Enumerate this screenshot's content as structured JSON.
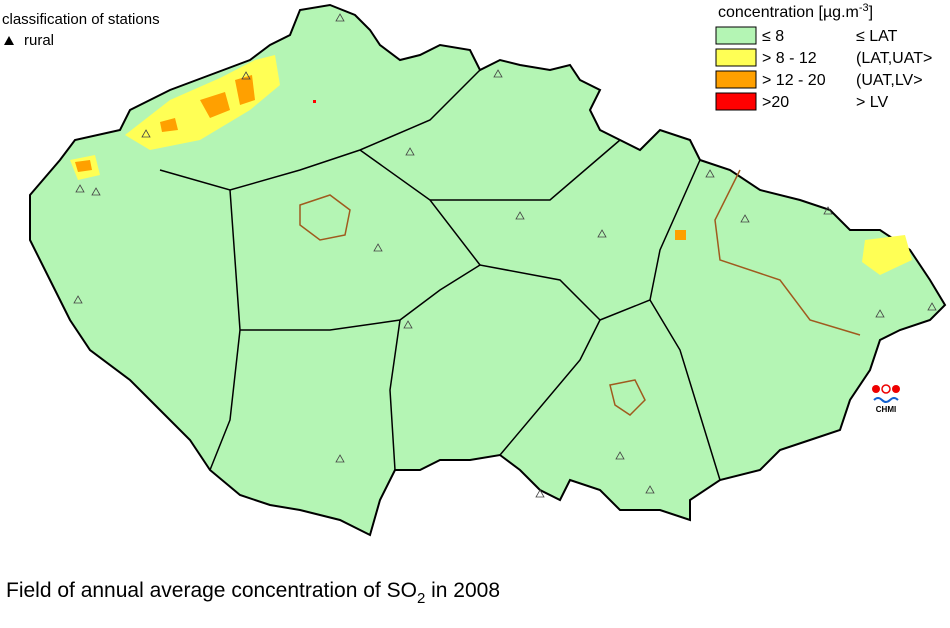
{
  "stations": {
    "title": "classification of stations",
    "items": [
      "rural"
    ]
  },
  "legend": {
    "title": {
      "text": "concentration [µg.m",
      "sup": "-3",
      "end": "]"
    },
    "items": [
      {
        "range": "≤ 8",
        "class": "≤ LAT",
        "color": "#b4f5b4"
      },
      {
        "range": "> 8 - 12",
        "class": "(LAT,UAT>",
        "color": "#ffff55"
      },
      {
        "range": "> 12 - 20",
        "class": "(UAT,LV>",
        "color": "#ffa000"
      },
      {
        "range": ">20",
        "class": "> LV",
        "color": "#ff0000"
      }
    ]
  },
  "logo": "CHMI",
  "caption": {
    "text": "Field of annual average concentration of SO",
    "sub": "2",
    "end": " in 2008"
  }
}
